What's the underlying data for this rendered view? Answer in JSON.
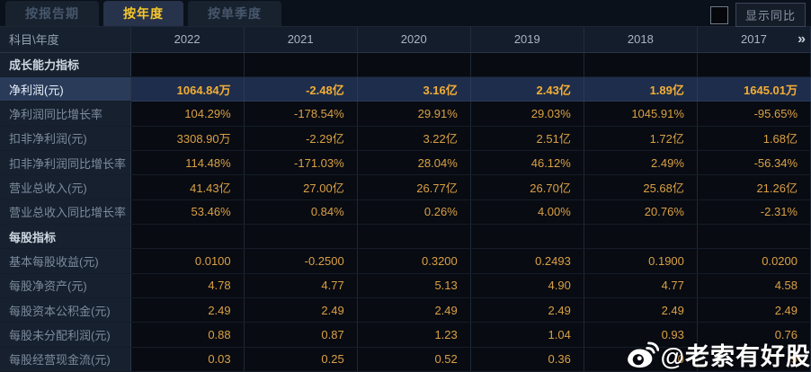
{
  "tabs": [
    {
      "label": "按报告期",
      "active": false
    },
    {
      "label": "按年度",
      "active": true
    },
    {
      "label": "按单季度",
      "active": false
    }
  ],
  "controls": {
    "show_yoy_label": "显示同比",
    "checkbox_checked": false
  },
  "table": {
    "corner_label": "科目\\年度",
    "years": [
      "2022",
      "2021",
      "2020",
      "2019",
      "2018",
      "2017"
    ],
    "more_icon": "»",
    "rows": [
      {
        "type": "section",
        "label": "成长能力指标",
        "values": [
          "",
          "",
          "",
          "",
          "",
          ""
        ]
      },
      {
        "type": "highlight",
        "label": "净利润(元)",
        "values": [
          "1064.84万",
          "-2.48亿",
          "3.16亿",
          "2.43亿",
          "1.89亿",
          "1645.01万"
        ]
      },
      {
        "type": "data",
        "label": "净利润同比增长率",
        "values": [
          "104.29%",
          "-178.54%",
          "29.91%",
          "29.03%",
          "1045.91%",
          "-95.65%"
        ]
      },
      {
        "type": "data",
        "label": "扣非净利润(元)",
        "values": [
          "3308.90万",
          "-2.29亿",
          "3.22亿",
          "2.51亿",
          "1.72亿",
          "1.68亿"
        ]
      },
      {
        "type": "data",
        "label": "扣非净利润同比增长率",
        "values": [
          "114.48%",
          "-171.03%",
          "28.04%",
          "46.12%",
          "2.49%",
          "-56.34%"
        ]
      },
      {
        "type": "data",
        "label": "营业总收入(元)",
        "values": [
          "41.43亿",
          "27.00亿",
          "26.77亿",
          "26.70亿",
          "25.68亿",
          "21.26亿"
        ]
      },
      {
        "type": "data",
        "label": "营业总收入同比增长率",
        "values": [
          "53.46%",
          "0.84%",
          "0.26%",
          "4.00%",
          "20.76%",
          "-2.31%"
        ]
      },
      {
        "type": "section",
        "label": "每股指标",
        "values": [
          "",
          "",
          "",
          "",
          "",
          ""
        ]
      },
      {
        "type": "data",
        "label": "基本每股收益(元)",
        "values": [
          "0.0100",
          "-0.2500",
          "0.3200",
          "0.2493",
          "0.1900",
          "0.0200"
        ]
      },
      {
        "type": "data",
        "label": "每股净资产(元)",
        "values": [
          "4.78",
          "4.77",
          "5.13",
          "4.90",
          "4.77",
          "4.58"
        ]
      },
      {
        "type": "data",
        "label": "每股资本公积金(元)",
        "values": [
          "2.49",
          "2.49",
          "2.49",
          "2.49",
          "2.49",
          "2.49"
        ]
      },
      {
        "type": "data",
        "label": "每股未分配利润(元)",
        "values": [
          "0.88",
          "0.87",
          "1.23",
          "1.04",
          "0.93",
          "0.76"
        ]
      },
      {
        "type": "data",
        "label": "每股经营现金流(元)",
        "values": [
          "0.03",
          "0.25",
          "0.52",
          "0.36",
          "0",
          "9"
        ]
      }
    ]
  },
  "watermark": {
    "icon": "weibo-icon",
    "text": "@老索有好股"
  },
  "colors": {
    "value_gold": "#daa045",
    "highlight_gold": "#f3ae36",
    "highlight_row_bg": "#1e2d4b",
    "active_tab_text": "#f6c62c",
    "label_column_bg": "#16202e",
    "page_bg": "#05080d"
  }
}
